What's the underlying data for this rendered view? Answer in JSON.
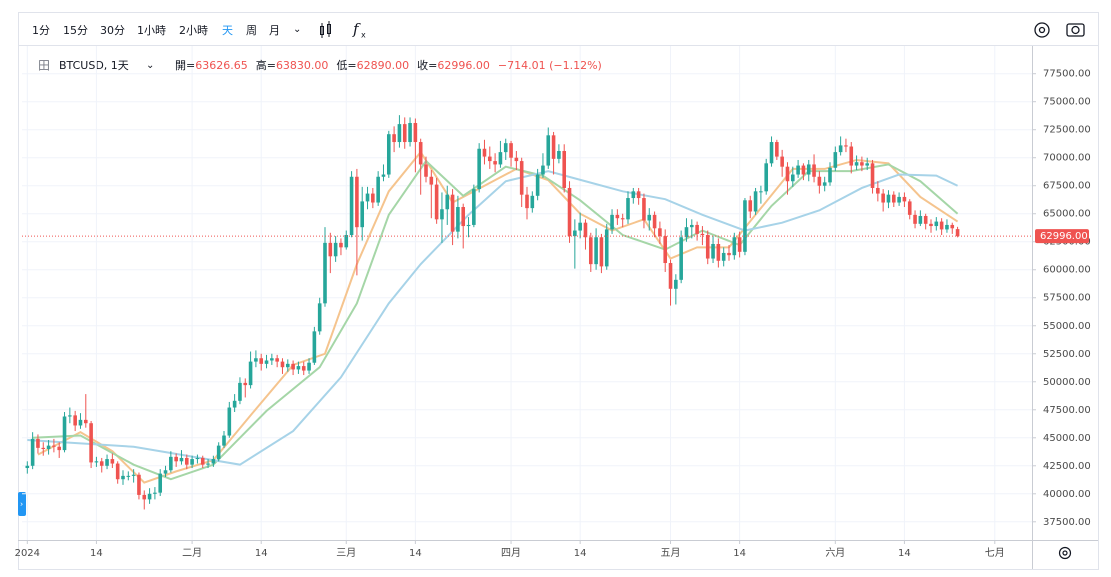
{
  "toolbar": {
    "intervals": [
      "1分",
      "15分",
      "30分",
      "1小時",
      "2小時",
      "天",
      "周",
      "月"
    ],
    "selected_interval": "天"
  },
  "chart_data": {
    "type": "candlestick",
    "symbol": "BTCUSD, 1天",
    "ohlc_legend": [
      {
        "label": "開=",
        "value": "63626.65"
      },
      {
        "label": "高=",
        "value": "63830.00"
      },
      {
        "label": "低=",
        "value": "62890.00"
      },
      {
        "label": "收=",
        "value": "62996.00"
      }
    ],
    "change": "−714.01 (−1.12%)",
    "up_color": "#26a69a",
    "down_color": "#ef5350",
    "open": [
      42300,
      42500,
      44900,
      44100,
      44000,
      44300,
      44200,
      43900,
      46900,
      47000,
      46100,
      46600,
      46300,
      42800,
      42900,
      42500,
      43100,
      42700,
      41300,
      41600,
      41600,
      41700,
      39900,
      39500,
      40000,
      40100,
      41800,
      42100,
      43300,
      42900,
      43200,
      42600,
      43100,
      43200,
      42600,
      42700,
      43100,
      44300,
      45200,
      47700,
      48300,
      49900,
      49700,
      51800,
      52100,
      51600,
      51900,
      52100,
      51800,
      51300,
      51600,
      51100,
      51400,
      51000,
      51700,
      54500,
      57000,
      62400,
      61200,
      62400,
      62000,
      63100,
      68300,
      63800,
      66100,
      66800,
      66000,
      68300,
      68500,
      72100,
      71400,
      73000,
      71400,
      73100,
      71400,
      69400,
      68300,
      67600,
      64500,
      65400,
      66700,
      63400,
      65600,
      63900,
      64000,
      67200,
      70800,
      70100,
      69700,
      69400,
      70500,
      71300,
      70000,
      69700,
      66700,
      65500,
      66600,
      68500,
      69300,
      72000,
      69900,
      70600,
      67300,
      63000,
      63500,
      64200,
      62900,
      60500,
      62900,
      60300,
      63600,
      64900,
      64600,
      64500,
      66400,
      67000,
      66400,
      64400,
      64900,
      63700,
      63000,
      60600,
      58300,
      59100,
      62900,
      63800,
      64000,
      63200,
      63100,
      61000,
      62300,
      60800,
      61500,
      61300,
      62900,
      61600,
      66200,
      65200,
      67000,
      67000,
      69500,
      71400,
      70100,
      69200,
      67900,
      68500,
      69300,
      68500,
      69400,
      68300,
      67500,
      67800,
      69100,
      70500,
      71100,
      71000,
      69300,
      69600,
      69300,
      69500,
      67300,
      66800,
      66000,
      66700,
      66000,
      66500,
      66100,
      64900,
      64100,
      64800,
      64100,
      63900,
      64300,
      63600,
      64000,
      63626.65
    ],
    "high": [
      42900,
      45500,
      45300,
      44600,
      44800,
      44900,
      44600,
      47300,
      47700,
      47400,
      47200,
      48900,
      46500,
      43300,
      43200,
      43500,
      43600,
      42900,
      42100,
      42000,
      42200,
      41900,
      40300,
      40500,
      40600,
      42200,
      42500,
      43800,
      43600,
      43900,
      43500,
      43400,
      43500,
      43400,
      43100,
      43400,
      44600,
      45600,
      48200,
      48900,
      50400,
      50300,
      52700,
      52800,
      52500,
      52400,
      52500,
      52400,
      52100,
      52000,
      51900,
      51800,
      51800,
      52100,
      54900,
      57500,
      63800,
      63300,
      63000,
      62800,
      63500,
      68800,
      69000,
      67400,
      67400,
      67300,
      68800,
      69400,
      72400,
      72800,
      73800,
      73600,
      73600,
      73500,
      71700,
      70100,
      68900,
      68200,
      66900,
      67500,
      67200,
      66600,
      65900,
      64700,
      67600,
      71300,
      71600,
      71000,
      70400,
      71500,
      71700,
      71500,
      70600,
      70000,
      67400,
      67000,
      69000,
      70400,
      72700,
      72300,
      71200,
      71200,
      67900,
      64500,
      65100,
      64500,
      63300,
      63700,
      63200,
      64100,
      65400,
      65400,
      65000,
      67000,
      67300,
      67300,
      66800,
      65500,
      65200,
      64300,
      63600,
      60900,
      59600,
      63500,
      64600,
      64500,
      64300,
      63900,
      63500,
      63000,
      62800,
      62000,
      62200,
      63300,
      63400,
      66400,
      66600,
      67300,
      67500,
      69900,
      71900,
      71600,
      70700,
      69600,
      69200,
      69800,
      69500,
      69800,
      70300,
      68800,
      68300,
      69600,
      71000,
      71900,
      71700,
      71400,
      70200,
      70100,
      70000,
      69800,
      67900,
      67200,
      67100,
      67000,
      66900,
      66900,
      66300,
      65300,
      65300,
      65000,
      64500,
      64700,
      64600,
      64500,
      64200,
      63830
    ],
    "low": [
      41800,
      42200,
      43600,
      43400,
      43500,
      43700,
      43200,
      43700,
      46300,
      45600,
      45800,
      45900,
      42300,
      42400,
      41900,
      42200,
      42300,
      40900,
      40800,
      41200,
      41000,
      39500,
      38600,
      39100,
      39500,
      39800,
      41500,
      41900,
      42400,
      42600,
      42200,
      42300,
      42700,
      42300,
      42300,
      42400,
      42900,
      44100,
      45000,
      47300,
      48000,
      48600,
      49400,
      51300,
      51000,
      51200,
      51500,
      51300,
      50700,
      50900,
      50600,
      50700,
      50600,
      50700,
      51500,
      54200,
      56700,
      59700,
      60700,
      61300,
      61800,
      62900,
      59500,
      62600,
      65400,
      65500,
      65700,
      67900,
      68200,
      70500,
      70900,
      70800,
      71000,
      68700,
      66700,
      67800,
      64600,
      64100,
      62400,
      64000,
      62200,
      62800,
      61900,
      62900,
      63800,
      66900,
      69400,
      69000,
      68700,
      69100,
      69800,
      69200,
      68900,
      65600,
      64500,
      65100,
      66200,
      68200,
      69000,
      68500,
      69500,
      66900,
      62400,
      60100,
      62800,
      61800,
      59800,
      60000,
      59700,
      60000,
      63200,
      64000,
      63800,
      64100,
      65900,
      65800,
      63700,
      63500,
      62900,
      62300,
      59800,
      56800,
      56900,
      58800,
      62500,
      62800,
      62600,
      62200,
      60500,
      60600,
      60200,
      60300,
      60800,
      60900,
      61100,
      61300,
      64600,
      64900,
      65900,
      66700,
      69200,
      69800,
      68300,
      66700,
      67400,
      68200,
      68000,
      67900,
      67800,
      66800,
      67000,
      67500,
      68800,
      70200,
      70500,
      68600,
      68900,
      68800,
      68900,
      66800,
      66100,
      65200,
      65500,
      65600,
      65700,
      65600,
      64500,
      63700,
      63900,
      63600,
      63300,
      63500,
      63100,
      63300,
      63200,
      62890
    ],
    "close": [
      42500,
      44900,
      44100,
      44000,
      44300,
      44200,
      43900,
      46900,
      47000,
      46100,
      46600,
      46300,
      42800,
      42900,
      42500,
      43100,
      42700,
      41300,
      41600,
      41600,
      41700,
      39900,
      39500,
      40000,
      40100,
      41800,
      42100,
      43300,
      42900,
      43200,
      42600,
      43100,
      43200,
      42600,
      42700,
      43100,
      44300,
      45200,
      47700,
      48300,
      49900,
      49700,
      51800,
      52100,
      51600,
      51900,
      52100,
      51800,
      51300,
      51600,
      51100,
      51400,
      51000,
      51700,
      54500,
      57000,
      62400,
      61200,
      62400,
      62000,
      63100,
      68300,
      63800,
      66100,
      66800,
      66000,
      68300,
      68500,
      72100,
      71400,
      73000,
      71400,
      73100,
      71400,
      69400,
      68300,
      67600,
      64500,
      65400,
      66700,
      63400,
      65600,
      63900,
      64000,
      67200,
      70800,
      70100,
      69700,
      69400,
      70500,
      71300,
      70000,
      69700,
      66700,
      65500,
      66600,
      68500,
      69300,
      72000,
      69900,
      70600,
      67300,
      63000,
      63500,
      64200,
      62900,
      60500,
      62900,
      60300,
      63600,
      64900,
      64600,
      64500,
      66400,
      67000,
      66400,
      64400,
      64900,
      63700,
      63000,
      60600,
      58300,
      59100,
      62900,
      63800,
      64000,
      63200,
      63100,
      61000,
      62300,
      60800,
      61500,
      61300,
      62900,
      61600,
      66200,
      65200,
      67000,
      67000,
      69500,
      71400,
      70100,
      69200,
      67900,
      68500,
      69300,
      68500,
      69400,
      68300,
      67500,
      67800,
      69100,
      70500,
      71100,
      71000,
      69300,
      69600,
      69300,
      69500,
      67300,
      66800,
      66000,
      66700,
      66000,
      66500,
      66100,
      64900,
      64100,
      64800,
      64100,
      63900,
      64300,
      63600,
      64000,
      63700,
      62996
    ],
    "series": [
      {
        "color": "#f5c48e",
        "x": [
          2,
          10,
          16,
          22,
          28,
          35,
          42,
          50,
          56,
          62,
          68,
          74,
          80,
          86,
          92,
          98,
          104,
          110,
          116,
          121,
          126,
          132,
          138,
          144,
          150,
          156,
          162,
          168,
          175
        ],
        "values": [
          43500,
          45500,
          43800,
          41000,
          42000,
          43000,
          47000,
          51500,
          52500,
          60500,
          67000,
          70500,
          66000,
          67500,
          69000,
          68000,
          65000,
          63500,
          64500,
          61000,
          62000,
          62000,
          65500,
          69000,
          69000,
          69800,
          69500,
          66500,
          64300
        ]
      },
      {
        "color": "#a5d6a7",
        "x": [
          1,
          10,
          20,
          27,
          35,
          45,
          55,
          62,
          68,
          75,
          82,
          90,
          97,
          104,
          112,
          120,
          127,
          134,
          140,
          147,
          155,
          162,
          168,
          175
        ],
        "values": [
          45000,
          45200,
          42600,
          41300,
          42600,
          47400,
          51300,
          57000,
          64900,
          69700,
          66600,
          69200,
          68400,
          66200,
          63100,
          61800,
          63500,
          62200,
          65700,
          68800,
          68800,
          69400,
          67900,
          65000
        ]
      },
      {
        "color": "#a7d3e8",
        "x": [
          0,
          20,
          40,
          50,
          59,
          68,
          74,
          83,
          90,
          98,
          105,
          112,
          120,
          127,
          135,
          142,
          149,
          157,
          164,
          171,
          175
        ],
        "values": [
          44800,
          44200,
          42600,
          45600,
          50400,
          57000,
          60500,
          64900,
          67900,
          68800,
          67900,
          67000,
          66300,
          64900,
          63500,
          64200,
          65300,
          67300,
          68500,
          68400,
          67500
        ]
      }
    ],
    "last_price": {
      "value": 62996,
      "label": "62996.00",
      "color": "#ef5350"
    },
    "xlim": [
      -1,
      189
    ],
    "xticks": [
      {
        "value": 0,
        "label": "2024"
      },
      {
        "value": 13,
        "label": "14"
      },
      {
        "value": 31,
        "label": "二月"
      },
      {
        "value": 44,
        "label": "14"
      },
      {
        "value": 60,
        "label": "三月"
      },
      {
        "value": 73,
        "label": "14"
      },
      {
        "value": 91,
        "label": "四月"
      },
      {
        "value": 104,
        "label": "14"
      },
      {
        "value": 121,
        "label": "五月"
      },
      {
        "value": 134,
        "label": "14"
      },
      {
        "value": 152,
        "label": "六月"
      },
      {
        "value": 165,
        "label": "14"
      },
      {
        "value": 182,
        "label": "七月"
      }
    ],
    "ylim": [
      35875,
      79973
    ],
    "yticks": [
      {
        "value": 37500,
        "label": "37500.00"
      },
      {
        "value": 40000,
        "label": "40000.00"
      },
      {
        "value": 42500,
        "label": "42500.00"
      },
      {
        "value": 45000,
        "label": "45000.00"
      },
      {
        "value": 47500,
        "label": "47500.00"
      },
      {
        "value": 50000,
        "label": "50000.00"
      },
      {
        "value": 52500,
        "label": "52500.00"
      },
      {
        "value": 55000,
        "label": "55000.00"
      },
      {
        "value": 57500,
        "label": "57500.00"
      },
      {
        "value": 60000,
        "label": "60000.00"
      },
      {
        "value": 62500,
        "label": "62500.00"
      },
      {
        "value": 65000,
        "label": "65000.00"
      },
      {
        "value": 67500,
        "label": "67500.00"
      },
      {
        "value": 70000,
        "label": "70000.00"
      },
      {
        "value": 72500,
        "label": "72500.00"
      },
      {
        "value": 75000,
        "label": "75000.00"
      },
      {
        "value": 77500,
        "label": "77500.00"
      }
    ],
    "grid": true
  }
}
